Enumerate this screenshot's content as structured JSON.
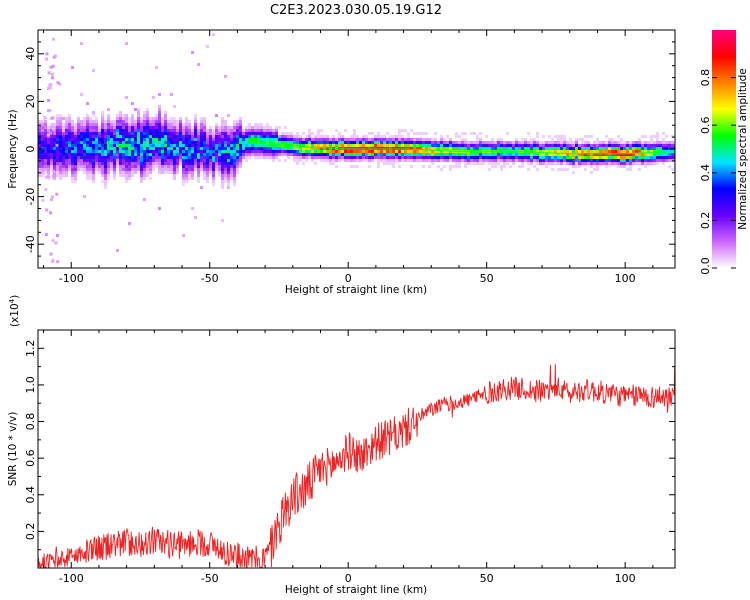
{
  "title": "C2E3.2023.030.05.19.G12",
  "colorbar": {
    "label": "Normalized spectral amplitude",
    "ticks": [
      "0.0",
      "0.2",
      "0.4",
      "0.6",
      "0.8"
    ],
    "tick_values": [
      0.0,
      0.2,
      0.4,
      0.6,
      0.8
    ],
    "range": [
      0,
      1
    ],
    "colormap": [
      "#ffffff",
      "#cc66ff",
      "#6600ff",
      "#0000ff",
      "#00e5ff",
      "#00ff00",
      "#ffff00",
      "#ff8000",
      "#ff0000",
      "#ff0080"
    ]
  },
  "chart_data": [
    {
      "type": "heatmap",
      "title": "C2E3.2023.030.05.19.G12",
      "xlabel": "Height of straight line (km)",
      "ylabel": "Frequency (Hz)",
      "xlim": [
        -112,
        118
      ],
      "ylim": [
        -50,
        50
      ],
      "xticks": [
        -100,
        -50,
        0,
        50,
        100
      ],
      "yticks": [
        -40,
        -20,
        0,
        20,
        40
      ],
      "xtick_labels": [
        "-100",
        "-50",
        "0",
        "50",
        "100"
      ],
      "ytick_labels": [
        "-40",
        "-20",
        "0",
        "20",
        "40"
      ],
      "ridge": {
        "x": [
          -112,
          -100,
          -90,
          -80,
          -70,
          -60,
          -50,
          -42,
          -35,
          -30,
          -20,
          0,
          20,
          40,
          60,
          80,
          100,
          118
        ],
        "center_hz": [
          -1,
          1,
          0,
          2,
          3,
          1,
          -1,
          0,
          3,
          3,
          1,
          0,
          0,
          -1,
          -1,
          -2,
          -2,
          -1
        ],
        "peak_amplitude": [
          0.3,
          0.35,
          0.4,
          0.45,
          0.45,
          0.4,
          0.35,
          0.4,
          0.55,
          0.55,
          0.6,
          0.95,
          0.9,
          0.6,
          0.55,
          0.75,
          0.95,
          0.4
        ]
      }
    },
    {
      "type": "line",
      "xlabel": "Height of straight line (km)",
      "ylabel": "SNR (10 * v/v)",
      "yscale_label": "(x10",
      "yscale_exp": "4",
      "yscale_close": ")",
      "xlim": [
        -112,
        118
      ],
      "ylim": [
        0.0,
        1.3
      ],
      "xticks": [
        -100,
        -50,
        0,
        50,
        100
      ],
      "yticks": [
        0.2,
        0.4,
        0.6,
        0.8,
        1.0,
        1.2
      ],
      "xtick_labels": [
        "-100",
        "-50",
        "0",
        "50",
        "100"
      ],
      "ytick_labels": [
        "0.2",
        "0.4",
        "0.6",
        "0.8",
        "1.0",
        "1.2"
      ],
      "color": "#ee2222",
      "series": [
        {
          "x": [
            -112,
            -105,
            -100,
            -95,
            -90,
            -85,
            -80,
            -75,
            -70,
            -65,
            -60,
            -55,
            -50,
            -45,
            -40,
            -35,
            -30,
            -28,
            -25,
            -22,
            -20,
            -15,
            -10,
            -5,
            0,
            5,
            10,
            15,
            20,
            25,
            30,
            35,
            40,
            45,
            50,
            55,
            60,
            65,
            70,
            75,
            80,
            85,
            90,
            95,
            100,
            105,
            110,
            118
          ],
          "y": [
            0.03,
            0.04,
            0.07,
            0.09,
            0.11,
            0.14,
            0.15,
            0.14,
            0.16,
            0.14,
            0.13,
            0.15,
            0.14,
            0.1,
            0.07,
            0.05,
            0.06,
            0.12,
            0.25,
            0.35,
            0.4,
            0.45,
            0.55,
            0.58,
            0.65,
            0.62,
            0.7,
            0.72,
            0.76,
            0.82,
            0.87,
            0.9,
            0.91,
            0.93,
            0.96,
            0.98,
            0.99,
            0.98,
            0.97,
            0.99,
            0.96,
            0.98,
            0.97,
            0.96,
            0.94,
            0.95,
            0.94,
            0.95
          ]
        }
      ]
    }
  ]
}
